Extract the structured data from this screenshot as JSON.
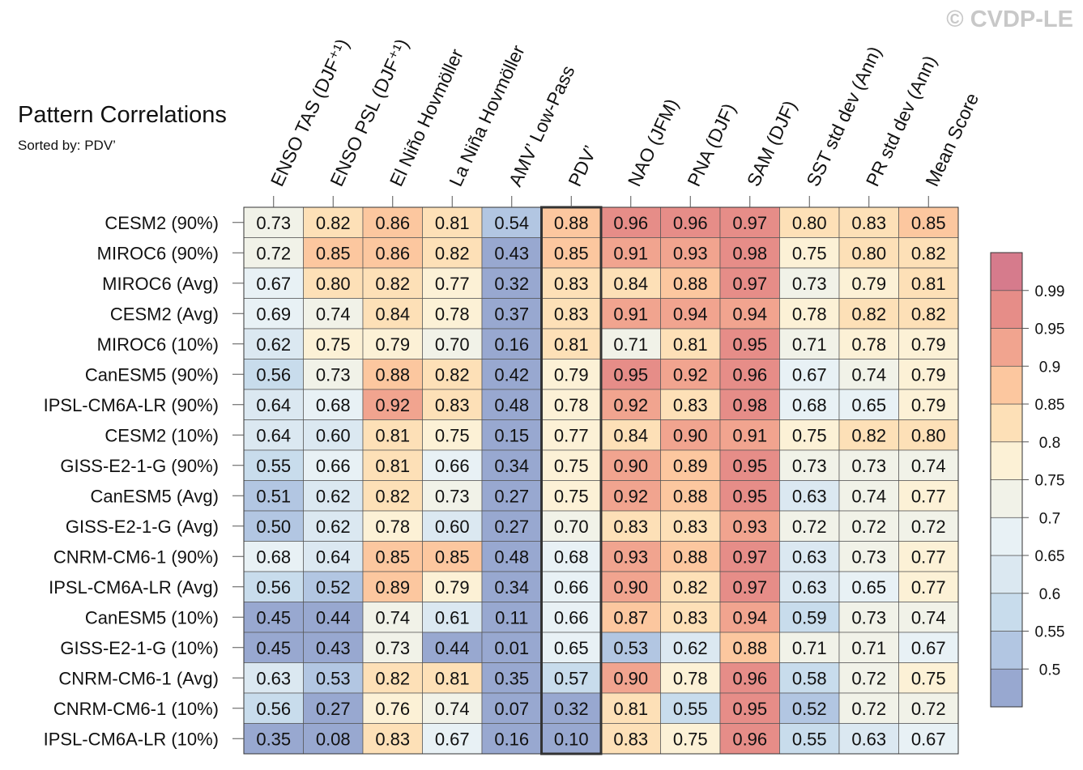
{
  "copyright": "© CVDP-LE",
  "chart_data": {
    "type": "heatmap",
    "title": "Pattern Correlations",
    "subtitle": "Sorted by: PDV’",
    "columns": [
      "ENSO TAS (DJF⁺¹)",
      "ENSO PSL (DJF⁺¹)",
      "El Niño Hovmöller",
      "La Niña Hovmöller",
      "AMV’ Low-Pass",
      "PDV’",
      "NAO (JFM)",
      "PNA (DJF)",
      "SAM (DJF)",
      "SST std dev (Ann)",
      "PR std dev (Ann)",
      "Mean Score"
    ],
    "highlighted_column": "PDV’",
    "rows": [
      "CESM2 (90%)",
      "MIROC6 (90%)",
      "MIROC6 (Avg)",
      "CESM2 (Avg)",
      "MIROC6 (10%)",
      "CanESM5 (90%)",
      "IPSL-CM6A-LR (90%)",
      "CESM2 (10%)",
      "GISS-E2-1-G (90%)",
      "CanESM5 (Avg)",
      "GISS-E2-1-G (Avg)",
      "CNRM-CM6-1 (90%)",
      "IPSL-CM6A-LR (Avg)",
      "CanESM5 (10%)",
      "GISS-E2-1-G (10%)",
      "CNRM-CM6-1 (Avg)",
      "CNRM-CM6-1 (10%)",
      "IPSL-CM6A-LR (10%)"
    ],
    "values": [
      [
        "0.73",
        "0.82",
        "0.86",
        "0.81",
        "0.54",
        "0.88",
        "0.96",
        "0.96",
        "0.97",
        "0.80",
        "0.83",
        "0.85"
      ],
      [
        "0.72",
        "0.85",
        "0.86",
        "0.82",
        "0.43",
        "0.85",
        "0.91",
        "0.93",
        "0.98",
        "0.75",
        "0.80",
        "0.82"
      ],
      [
        "0.67",
        "0.80",
        "0.82",
        "0.77",
        "0.32",
        "0.83",
        "0.84",
        "0.88",
        "0.97",
        "0.73",
        "0.79",
        "0.81"
      ],
      [
        "0.69",
        "0.74",
        "0.84",
        "0.78",
        "0.37",
        "0.83",
        "0.91",
        "0.94",
        "0.94",
        "0.78",
        "0.82",
        "0.82"
      ],
      [
        "0.62",
        "0.75",
        "0.79",
        "0.70",
        "0.16",
        "0.81",
        "0.71",
        "0.81",
        "0.95",
        "0.71",
        "0.78",
        "0.79"
      ],
      [
        "0.56",
        "0.73",
        "0.88",
        "0.82",
        "0.42",
        "0.79",
        "0.95",
        "0.92",
        "0.96",
        "0.67",
        "0.74",
        "0.79"
      ],
      [
        "0.64",
        "0.68",
        "0.92",
        "0.83",
        "0.48",
        "0.78",
        "0.92",
        "0.83",
        "0.98",
        "0.68",
        "0.65",
        "0.79"
      ],
      [
        "0.64",
        "0.60",
        "0.81",
        "0.75",
        "0.15",
        "0.77",
        "0.84",
        "0.90",
        "0.91",
        "0.75",
        "0.82",
        "0.80"
      ],
      [
        "0.55",
        "0.66",
        "0.81",
        "0.66",
        "0.34",
        "0.75",
        "0.90",
        "0.89",
        "0.95",
        "0.73",
        "0.73",
        "0.74"
      ],
      [
        "0.51",
        "0.62",
        "0.82",
        "0.73",
        "0.27",
        "0.75",
        "0.92",
        "0.88",
        "0.95",
        "0.63",
        "0.74",
        "0.77"
      ],
      [
        "0.50",
        "0.62",
        "0.78",
        "0.60",
        "0.27",
        "0.70",
        "0.83",
        "0.83",
        "0.93",
        "0.72",
        "0.72",
        "0.72"
      ],
      [
        "0.68",
        "0.64",
        "0.85",
        "0.85",
        "0.48",
        "0.68",
        "0.93",
        "0.88",
        "0.97",
        "0.63",
        "0.73",
        "0.77"
      ],
      [
        "0.56",
        "0.52",
        "0.89",
        "0.79",
        "0.34",
        "0.66",
        "0.90",
        "0.82",
        "0.97",
        "0.63",
        "0.65",
        "0.77"
      ],
      [
        "0.45",
        "0.44",
        "0.74",
        "0.61",
        "0.11",
        "0.66",
        "0.87",
        "0.83",
        "0.94",
        "0.59",
        "0.73",
        "0.74"
      ],
      [
        "0.45",
        "0.43",
        "0.73",
        "0.44",
        "0.01",
        "0.65",
        "0.53",
        "0.62",
        "0.88",
        "0.71",
        "0.71",
        "0.67"
      ],
      [
        "0.63",
        "0.53",
        "0.82",
        "0.81",
        "0.35",
        "0.57",
        "0.90",
        "0.78",
        "0.96",
        "0.58",
        "0.72",
        "0.75"
      ],
      [
        "0.56",
        "0.27",
        "0.76",
        "0.74",
        "0.07",
        "0.32",
        "0.81",
        "0.55",
        "0.95",
        "0.52",
        "0.72",
        "0.72"
      ],
      [
        "0.35",
        "0.08",
        "0.83",
        "0.67",
        "0.16",
        "0.10",
        "0.83",
        "0.75",
        "0.96",
        "0.55",
        "0.63",
        "0.67"
      ]
    ],
    "colorbar": {
      "boundaries": [
        "0.5",
        "0.55",
        "0.6",
        "0.65",
        "0.7",
        "0.75",
        "0.8",
        "0.85",
        "0.9",
        "0.95",
        "0.99"
      ],
      "colors": [
        "#98a8d0",
        "#b2c6e2",
        "#c8dcec",
        "#dbe8f1",
        "#e8f1f5",
        "#f1f2e8",
        "#fcf1d6",
        "#fde0b7",
        "#fcc79f",
        "#f1a48f",
        "#e68d88",
        "#d67b8c"
      ]
    }
  }
}
